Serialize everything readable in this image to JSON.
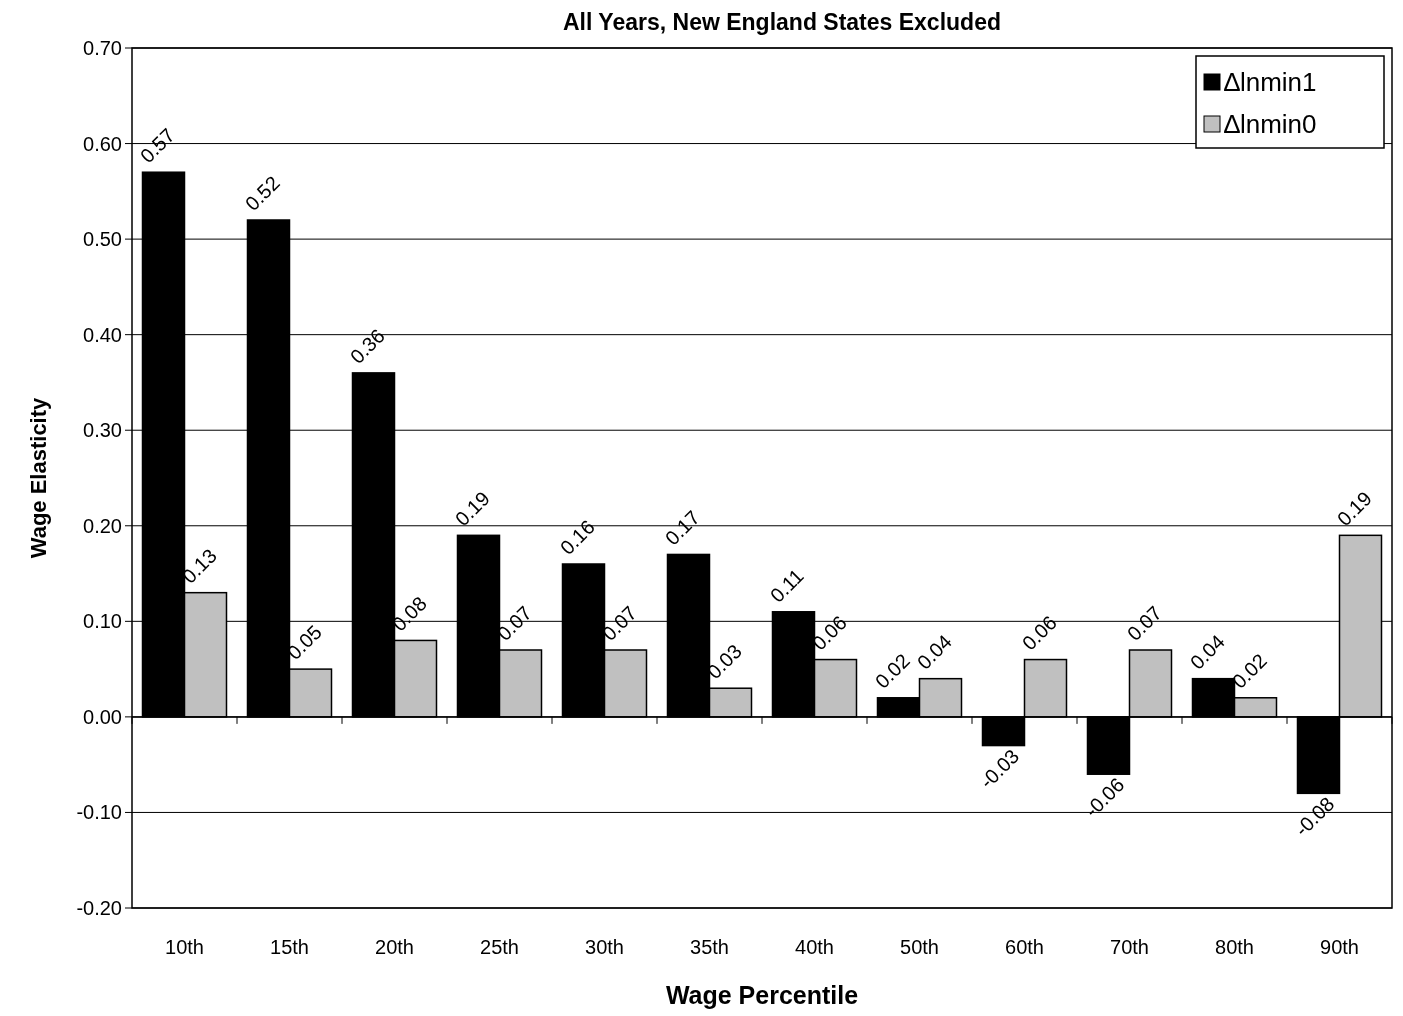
{
  "chart_data": {
    "type": "bar",
    "title": "All Years, New England States Excluded",
    "xlabel": "Wage Percentile",
    "ylabel": "Wage Elasticity",
    "categories": [
      "10th",
      "15th",
      "20th",
      "25th",
      "30th",
      "35th",
      "40th",
      "50th",
      "60th",
      "70th",
      "80th",
      "90th"
    ],
    "series": [
      {
        "name": "∆lnmin1",
        "color": "#000000",
        "values": [
          0.57,
          0.52,
          0.36,
          0.19,
          0.16,
          0.17,
          0.11,
          0.02,
          -0.03,
          -0.06,
          0.04,
          -0.08
        ]
      },
      {
        "name": "∆lnmin0",
        "color": "#c0c0c0",
        "values": [
          0.13,
          0.05,
          0.08,
          0.07,
          0.07,
          0.03,
          0.06,
          0.04,
          0.06,
          0.07,
          0.02,
          0.19
        ]
      }
    ],
    "ylim": [
      -0.2,
      0.7
    ],
    "yticks": [
      {
        "value": -0.2,
        "label": "-0.20"
      },
      {
        "value": -0.1,
        "label": "-0.10"
      },
      {
        "value": 0,
        "label": "0.00"
      },
      {
        "value": 0.1,
        "label": "0.10"
      },
      {
        "value": 0.2,
        "label": "0.20"
      },
      {
        "value": 0.3,
        "label": "0.30"
      },
      {
        "value": 0.4,
        "label": "0.40"
      },
      {
        "value": 0.5,
        "label": "0.50"
      },
      {
        "value": 0.6,
        "label": "0.60"
      },
      {
        "value": 0.7,
        "label": "0.70"
      }
    ],
    "grid": "y",
    "legend": "top right",
    "data_labels": true
  }
}
